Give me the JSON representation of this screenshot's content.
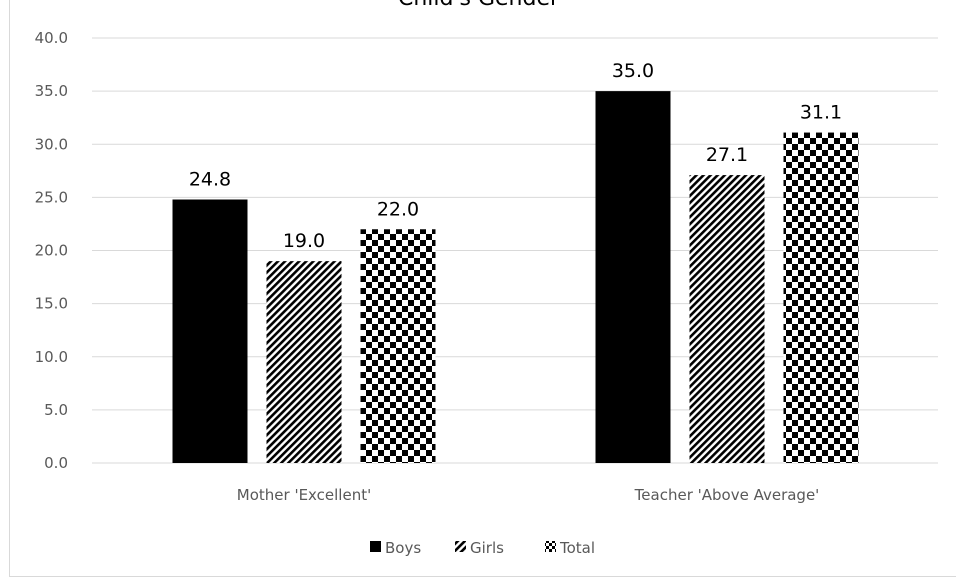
{
  "chart_data": {
    "type": "bar",
    "title": "Child's Gender",
    "categories": [
      "Mother 'Excellent'",
      "Teacher 'Above Average'"
    ],
    "series": [
      {
        "name": "Boys",
        "values": [
          24.8,
          35.0
        ],
        "pattern": "solid",
        "color": "#000000"
      },
      {
        "name": "Girls",
        "values": [
          19.0,
          27.1
        ],
        "pattern": "diagonal-stripes",
        "color": "#000000"
      },
      {
        "name": "Total",
        "values": [
          22.0,
          31.1
        ],
        "pattern": "checkerboard",
        "color": "#000000"
      }
    ],
    "ylim": [
      0,
      40
    ],
    "yticks": [
      "0.0",
      "5.0",
      "10.0",
      "15.0",
      "20.0",
      "25.0",
      "30.0",
      "35.0",
      "40.0"
    ],
    "grid": true,
    "legend": "bottom",
    "data_labels": true
  }
}
